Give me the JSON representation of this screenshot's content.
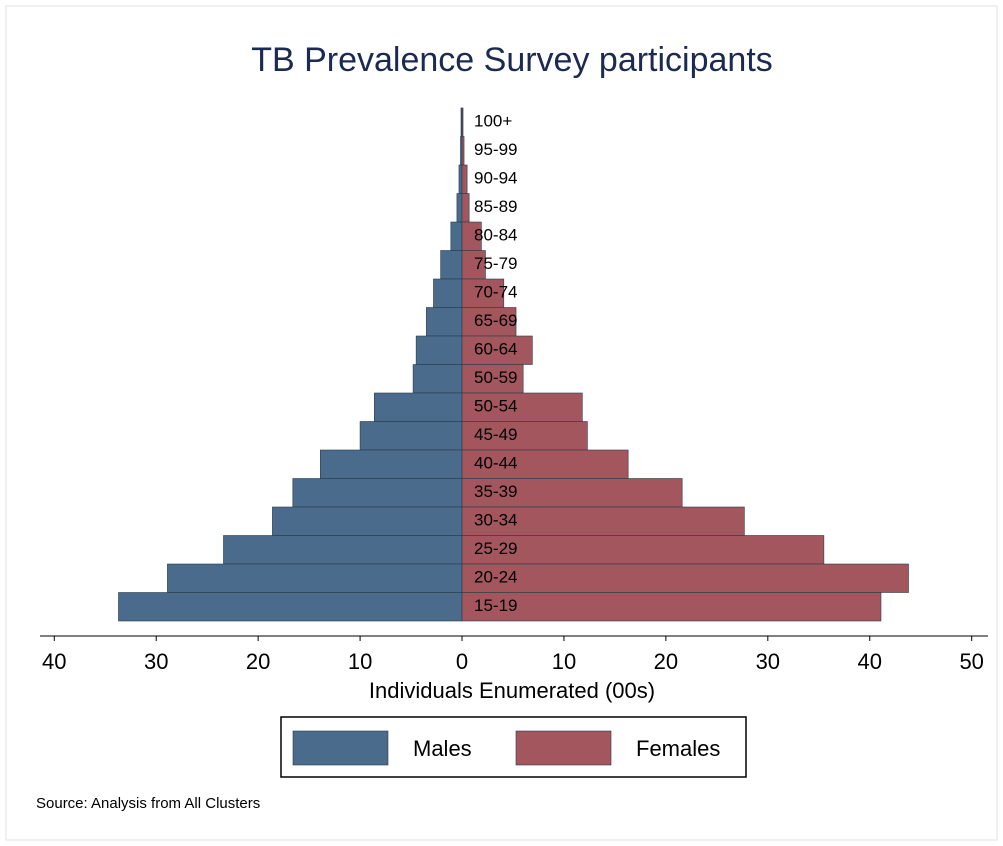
{
  "chart_data": {
    "type": "pyramid",
    "title": "TB Prevalence Survey  participants",
    "x_label": "Individuals Enumerated (00s)",
    "source": "Source: Analysis from All Clusters",
    "categories": [
      "100+",
      "95-99",
      "90-94",
      "85-89",
      "80-84",
      "75-79",
      "70-74",
      "65-69",
      "60-64",
      "50-59",
      "50-54",
      "45-49",
      "40-44",
      "35-39",
      "30-34",
      "25-29",
      "20-24",
      "15-19"
    ],
    "series": [
      {
        "name": "Males",
        "color": "#4a6b8c",
        "side": "left",
        "values": [
          0.1,
          0.15,
          0.3,
          0.5,
          1.1,
          2.1,
          2.8,
          3.5,
          4.5,
          4.8,
          8.6,
          10,
          13.9,
          16.6,
          18.6,
          23.4,
          28.9,
          33.7
        ]
      },
      {
        "name": "Females",
        "color": "#a3565d",
        "side": "right",
        "values": [
          0.1,
          0.2,
          0.5,
          0.7,
          1.9,
          2.3,
          4.1,
          5.3,
          6.9,
          6.0,
          11.8,
          12.3,
          16.3,
          21.6,
          27.7,
          35.5,
          43.8,
          41.1
        ]
      }
    ],
    "xlim": [
      -41.4,
      51.6
    ],
    "xticks": [
      {
        "value": -40,
        "label": "40"
      },
      {
        "value": -30,
        "label": "30"
      },
      {
        "value": -20,
        "label": "20"
      },
      {
        "value": -10,
        "label": "10"
      },
      0,
      10,
      20,
      30,
      40,
      50
    ],
    "legend": "bottom"
  }
}
